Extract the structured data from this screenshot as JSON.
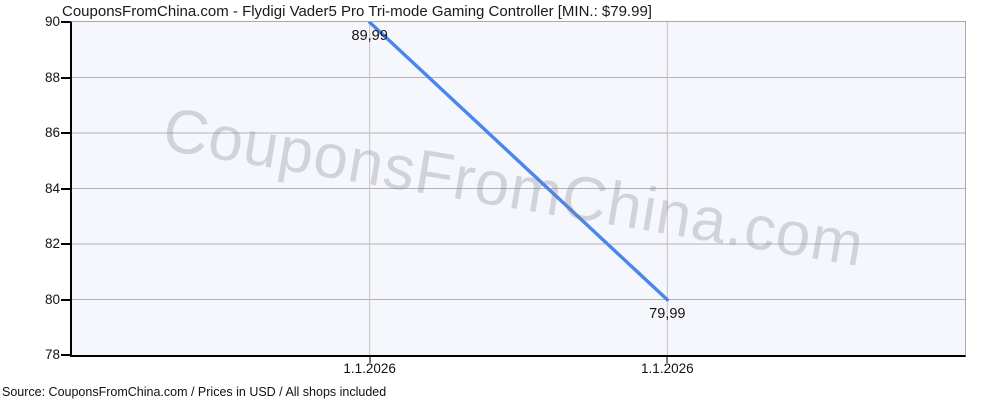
{
  "title": "CouponsFromChina.com - Flydigi Vader5 Pro Tri-mode Gaming Controller [MIN.: $79.99]",
  "watermark": "CouponsFromChina.com",
  "footer": "Source: CouponsFromChina.com / Prices in USD / All shops included",
  "colors": {
    "line": "#4a86ec",
    "plot_background": "#f5f7fd",
    "grid_horizontal": "#b3b3b3",
    "grid_vertical": "#c4c4c4",
    "axis": "#000000",
    "frame": "#a9a9a9",
    "watermark": "rgba(130,130,138,0.30)"
  },
  "chart_data": {
    "type": "line",
    "title": "CouponsFromChina.com - Flydigi Vader5 Pro Tri-mode Gaming Controller [MIN.: $79.99]",
    "x": [
      "1.1.2026",
      "1.1.2026"
    ],
    "series": [
      {
        "name": "Price (USD)",
        "values": [
          89.99,
          79.99
        ]
      }
    ],
    "point_labels": [
      "89,99",
      "79,99"
    ],
    "min_price_label": "$79.99",
    "xlabel": "",
    "ylabel": "",
    "ylim": [
      78,
      90
    ],
    "y_ticks": [
      78,
      80,
      82,
      84,
      86,
      88,
      90
    ],
    "grid": true,
    "legend_position": "none"
  }
}
